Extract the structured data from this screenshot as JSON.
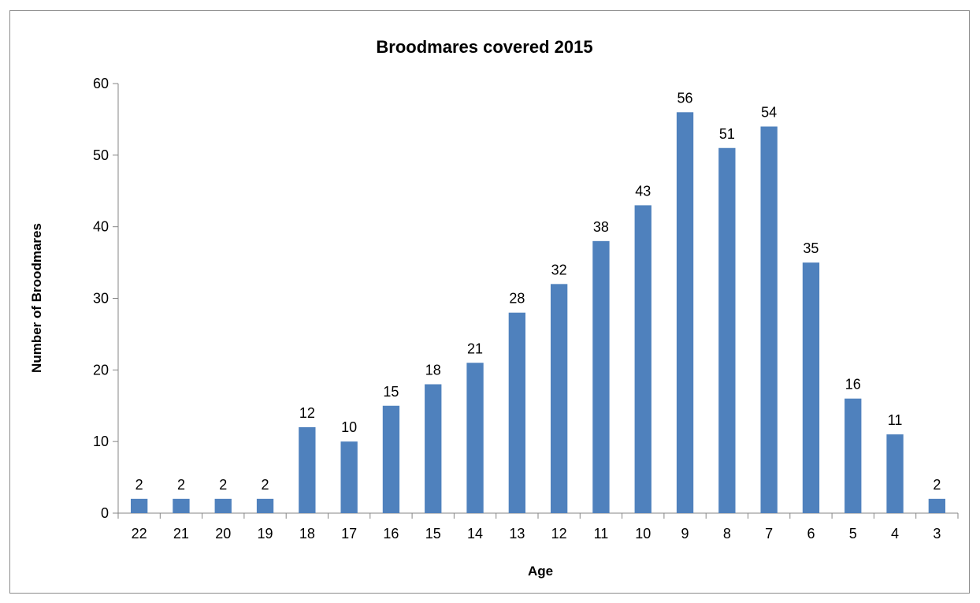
{
  "chart_data": {
    "type": "bar",
    "title": "Broodmares covered 2015",
    "xlabel": "Age",
    "ylabel": "Number of Broodmares",
    "categories": [
      "22",
      "21",
      "20",
      "19",
      "18",
      "17",
      "16",
      "15",
      "14",
      "13",
      "12",
      "11",
      "10",
      "9",
      "8",
      "7",
      "6",
      "5",
      "4",
      "3"
    ],
    "values": [
      2,
      2,
      2,
      2,
      12,
      10,
      15,
      18,
      21,
      28,
      32,
      38,
      43,
      56,
      51,
      54,
      35,
      16,
      11,
      2
    ],
    "ylim": [
      0,
      60
    ],
    "yticks": [
      0,
      10,
      20,
      30,
      40,
      50,
      60
    ],
    "grid": false,
    "legend": "none",
    "bar_color": "#4f81bd",
    "data_labels": true
  }
}
